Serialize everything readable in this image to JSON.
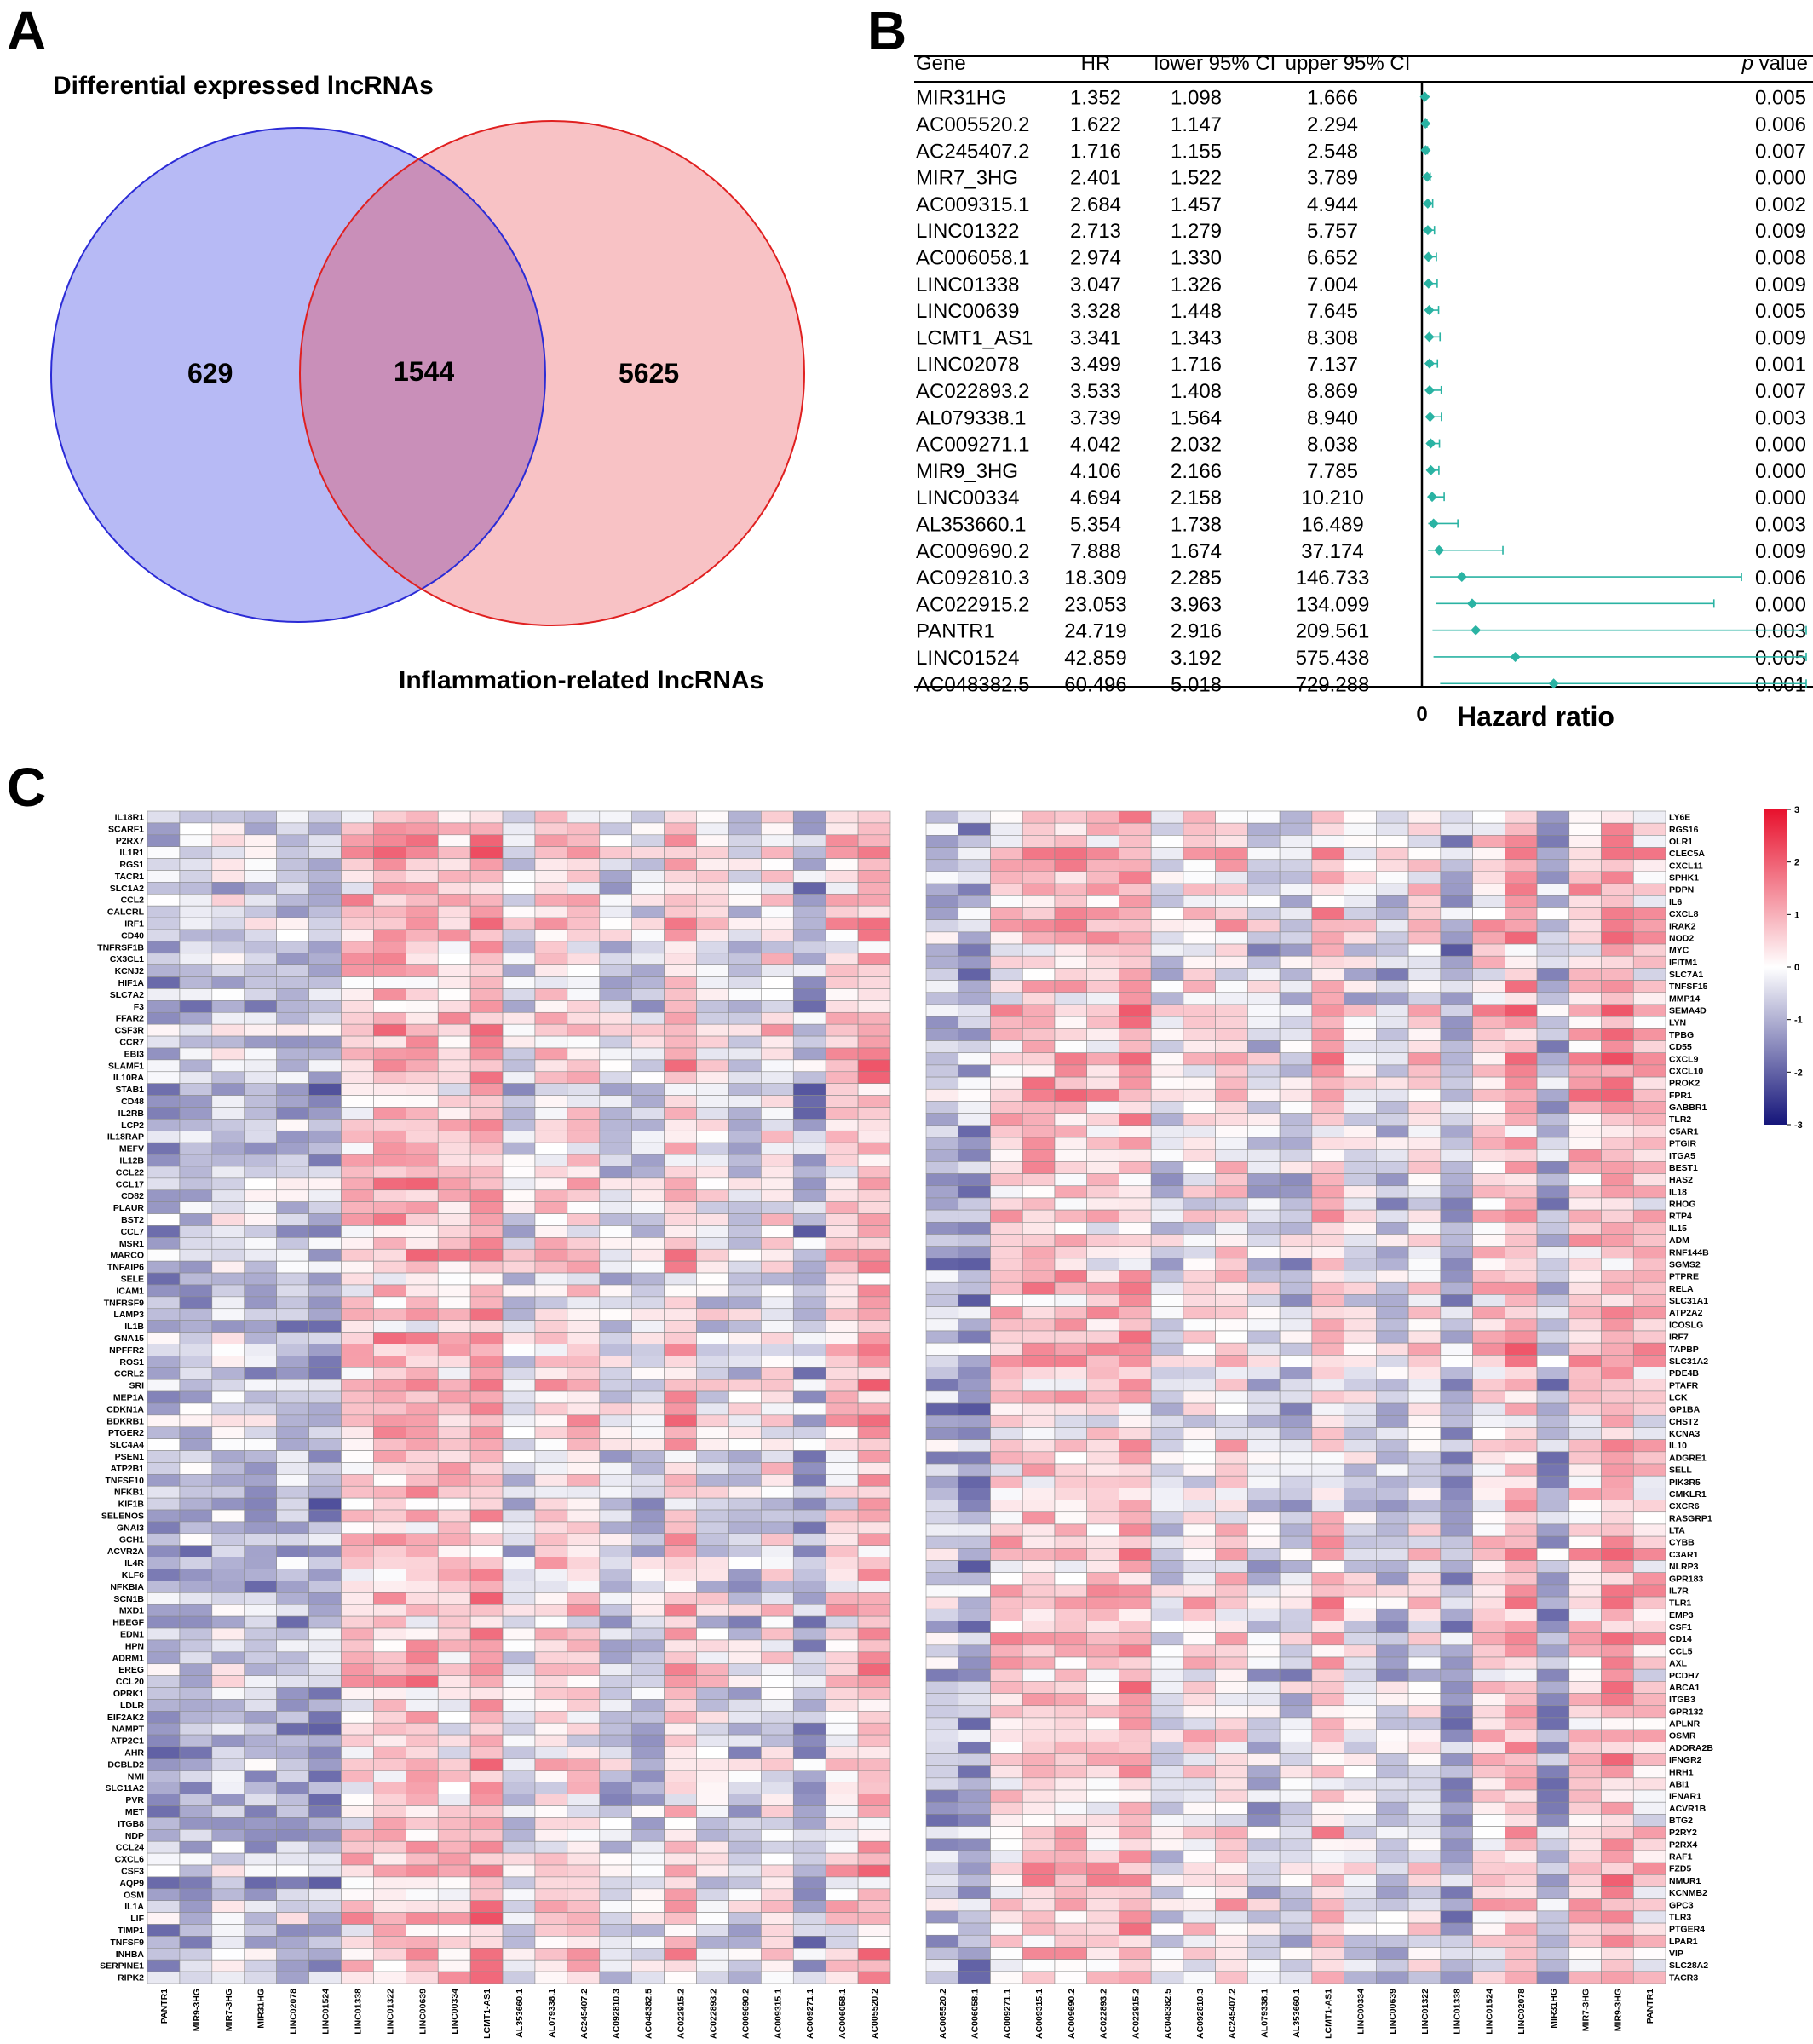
{
  "panel_letters": {
    "a": "A",
    "b": "B",
    "c": "C"
  },
  "venn": {
    "left_title": "Differential expressed lncRNAs",
    "right_title": "Inflammation-related lncRNAs",
    "left_only": "629",
    "intersection": "1544",
    "right_only": "5625",
    "colors": {
      "left_fill": "#b7baf5",
      "left_stroke": "#2b2bd6",
      "right_fill": "#f8c2c5",
      "right_stroke": "#e02020",
      "overlap": "#c98fb9"
    }
  },
  "forest": {
    "headers": {
      "gene": "Gene",
      "hr": "HR",
      "lower": "lower 95% CI",
      "upper": "upper 95% CI",
      "p_italic": "p",
      "p_rest": " value"
    },
    "axis_zero": "0",
    "axis_label": "Hazard ratio",
    "color": "#2ab3a3",
    "rows": [
      {
        "gene": "MIR31HG",
        "hr": "1.352",
        "lower": "1.098",
        "upper": "1.666",
        "p": "0.005"
      },
      {
        "gene": "AC005520.2",
        "hr": "1.622",
        "lower": "1.147",
        "upper": "2.294",
        "p": "0.006"
      },
      {
        "gene": "AC245407.2",
        "hr": "1.716",
        "lower": "1.155",
        "upper": "2.548",
        "p": "0.007"
      },
      {
        "gene": "MIR7_3HG",
        "hr": "2.401",
        "lower": "1.522",
        "upper": "3.789",
        "p": "0.000"
      },
      {
        "gene": "AC009315.1",
        "hr": "2.684",
        "lower": "1.457",
        "upper": "4.944",
        "p": "0.002"
      },
      {
        "gene": "LINC01322",
        "hr": "2.713",
        "lower": "1.279",
        "upper": "5.757",
        "p": "0.009"
      },
      {
        "gene": "AC006058.1",
        "hr": "2.974",
        "lower": "1.330",
        "upper": "6.652",
        "p": "0.008"
      },
      {
        "gene": "LINC01338",
        "hr": "3.047",
        "lower": "1.326",
        "upper": "7.004",
        "p": "0.009"
      },
      {
        "gene": "LINC00639",
        "hr": "3.328",
        "lower": "1.448",
        "upper": "7.645",
        "p": "0.005"
      },
      {
        "gene": "LCMT1_AS1",
        "hr": "3.341",
        "lower": "1.343",
        "upper": "8.308",
        "p": "0.009"
      },
      {
        "gene": "LINC02078",
        "hr": "3.499",
        "lower": "1.716",
        "upper": "7.137",
        "p": "0.001"
      },
      {
        "gene": "AC022893.2",
        "hr": "3.533",
        "lower": "1.408",
        "upper": "8.869",
        "p": "0.007"
      },
      {
        "gene": "AL079338.1",
        "hr": "3.739",
        "lower": "1.564",
        "upper": "8.940",
        "p": "0.003"
      },
      {
        "gene": "AC009271.1",
        "hr": "4.042",
        "lower": "2.032",
        "upper": "8.038",
        "p": "0.000"
      },
      {
        "gene": "MIR9_3HG",
        "hr": "4.106",
        "lower": "2.166",
        "upper": "7.785",
        "p": "0.000"
      },
      {
        "gene": "LINC00334",
        "hr": "4.694",
        "lower": "2.158",
        "upper": "10.210",
        "p": "0.000"
      },
      {
        "gene": "AL353660.1",
        "hr": "5.354",
        "lower": "1.738",
        "upper": "16.489",
        "p": "0.003"
      },
      {
        "gene": "AC009690.2",
        "hr": "7.888",
        "lower": "1.674",
        "upper": "37.174",
        "p": "0.009"
      },
      {
        "gene": "AC092810.3",
        "hr": "18.309",
        "lower": "2.285",
        "upper": "146.733",
        "p": "0.006"
      },
      {
        "gene": "AC022915.2",
        "hr": "23.053",
        "lower": "3.963",
        "upper": "134.099",
        "p": "0.000"
      },
      {
        "gene": "PANTR1",
        "hr": "24.719",
        "lower": "2.916",
        "upper": "209.561",
        "p": "0.003"
      },
      {
        "gene": "LINC01524",
        "hr": "42.859",
        "lower": "3.192",
        "upper": "575.438",
        "p": "0.005"
      },
      {
        "gene": "AC048382.5",
        "hr": "60.496",
        "lower": "5.018",
        "upper": "729.288",
        "p": "0.001"
      }
    ]
  },
  "heatmap": {
    "legend_ticks": [
      "3",
      "2",
      "1",
      "0",
      "-1",
      "-2",
      "-3"
    ],
    "colors": {
      "high": "#e8112d",
      "mid": "#ffffff",
      "low": "#15157a",
      "grid": "#8c8c8c"
    },
    "left": {
      "columns": [
        "PANTR1",
        "MIR9-3HG",
        "MIR7-3HG",
        "MIR31HG",
        "LINC02078",
        "LINC01524",
        "LINC01338",
        "LINC01322",
        "LINC00639",
        "LINC00334",
        "LCMT1-AS1",
        "AL353660.1",
        "AL079338.1",
        "AC245407.2",
        "AC092810.3",
        "AC048382.5",
        "AC022915.2",
        "AC022893.2",
        "AC009690.2",
        "AC009315.1",
        "AC009271.1",
        "AC006058.1",
        "AC005520.2"
      ],
      "rows": [
        "IL18R1",
        "SCARF1",
        "P2RX7",
        "IL1R1",
        "RGS1",
        "TACR1",
        "SLC1A2",
        "CCL2",
        "CALCRL",
        "IRF1",
        "CD40",
        "TNFRSF1B",
        "CX3CL1",
        "KCNJ2",
        "HIF1A",
        "SLC7A2",
        "F3",
        "FFAR2",
        "CSF3R",
        "CCR7",
        "EBI3",
        "SLAMF1",
        "IL10RA",
        "STAB1",
        "CD48",
        "IL2RB",
        "LCP2",
        "IL18RAP",
        "MEFV",
        "IL12B",
        "CCL22",
        "CCL17",
        "CD82",
        "PLAUR",
        "BST2",
        "CCL7",
        "MSR1",
        "MARCO",
        "TNFAIP6",
        "SELE",
        "ICAM1",
        "TNFRSF9",
        "LAMP3",
        "IL1B",
        "GNA15",
        "NPFFR2",
        "ROS1",
        "CCRL2",
        "SRI",
        "MEP1A",
        "CDKN1A",
        "BDKRB1",
        "PTGER2",
        "SLC4A4",
        "PSEN1",
        "ATP2B1",
        "TNFSF10",
        "NFKB1",
        "KIF1B",
        "SELENOS",
        "GNAI3",
        "GCH1",
        "ACVR2A",
        "IL4R",
        "KLF6",
        "NFKBIA",
        "SCN1B",
        "MXD1",
        "HBEGF",
        "EDN1",
        "HPN",
        "ADRM1",
        "EREG",
        "CCL20",
        "OPRK1",
        "LDLR",
        "EIF2AK2",
        "NAMPT",
        "ATP2C1",
        "AHR",
        "DCBLD2",
        "NMI",
        "SLC11A2",
        "PVR",
        "MET",
        "ITGB8",
        "NDP",
        "CCL24",
        "CXCL6",
        "CSF3",
        "AQP9",
        "OSM",
        "IL1A",
        "LIF",
        "TIMP1",
        "TNFSF9",
        "INHBA",
        "SERPINE1",
        "RIPK2"
      ]
    },
    "right": {
      "columns": [
        "AC005520.2",
        "AC006058.1",
        "AC009271.1",
        "AC009315.1",
        "AC009690.2",
        "AC022893.2",
        "AC022915.2",
        "AC048382.5",
        "AC092810.3",
        "AC245407.2",
        "AL079338.1",
        "AL353660.1",
        "LCMT1-AS1",
        "LINC00334",
        "LINC00639",
        "LINC01322",
        "LINC01338",
        "LINC01524",
        "LINC02078",
        "MIR31HG",
        "MIR7-3HG",
        "MIR9-3HG",
        "PANTR1"
      ],
      "rows": [
        "LY6E",
        "RGS16",
        "OLR1",
        "CLEC5A",
        "CXCL11",
        "SPHK1",
        "PDPN",
        "IL6",
        "CXCL8",
        "IRAK2",
        "NOD2",
        "MYC",
        "IFITM1",
        "SLC7A1",
        "TNFSF15",
        "MMP14",
        "SEMA4D",
        "LYN",
        "TPBG",
        "CD55",
        "CXCL9",
        "CXCL10",
        "PROK2",
        "FPR1",
        "GABBR1",
        "TLR2",
        "C5AR1",
        "PTGIR",
        "ITGA5",
        "BEST1",
        "HAS2",
        "IL18",
        "RHOG",
        "RTP4",
        "IL15",
        "ADM",
        "RNF144B",
        "SGMS2",
        "PTPRE",
        "RELA",
        "SLC31A1",
        "ATP2A2",
        "ICOSLG",
        "IRF7",
        "TAPBP",
        "SLC31A2",
        "PDE4B",
        "PTAFR",
        "LCK",
        "GP1BA",
        "CHST2",
        "KCNA3",
        "IL10",
        "ADGRE1",
        "SELL",
        "PIK3R5",
        "CMKLR1",
        "CXCR6",
        "RASGRP1",
        "LTA",
        "CYBB",
        "C3AR1",
        "NLRP3",
        "GPR183",
        "IL7R",
        "TLR1",
        "EMP3",
        "CSF1",
        "CD14",
        "CCL5",
        "AXL",
        "PCDH7",
        "ABCA1",
        "ITGB3",
        "GPR132",
        "APLNR",
        "OSMR",
        "ADORA2B",
        "IFNGR2",
        "HRH1",
        "ABI1",
        "IFNAR1",
        "ACVR1B",
        "BTG2",
        "P2RY2",
        "P2RX4",
        "RAF1",
        "FZD5",
        "NMUR1",
        "KCNMB2",
        "GPC3",
        "TLR3",
        "PTGER4",
        "LPAR1",
        "VIP",
        "SLC28A2",
        "TACR3"
      ]
    }
  }
}
